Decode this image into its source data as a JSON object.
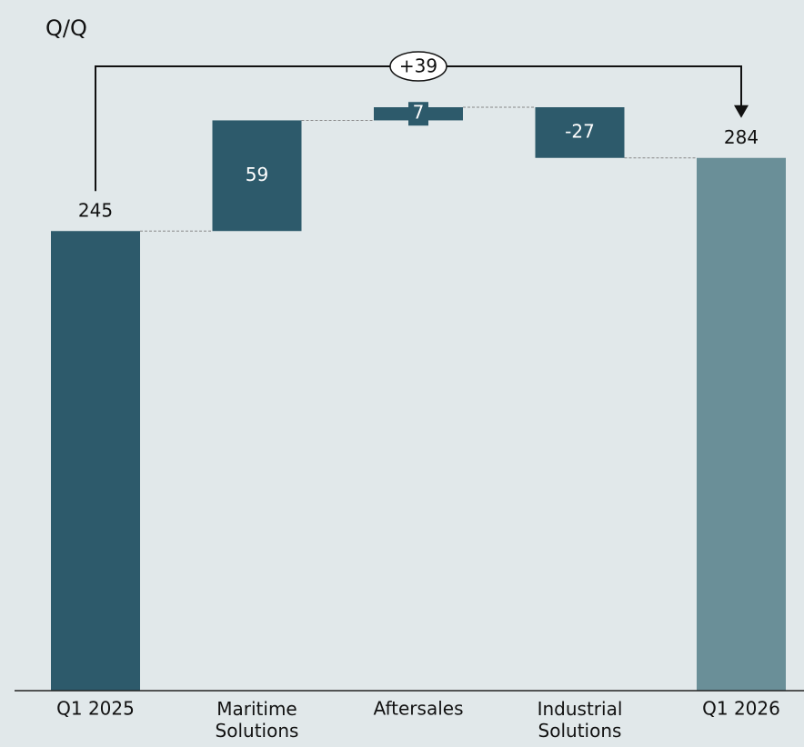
{
  "chart_data": {
    "type": "waterfall",
    "title": "Q/Q",
    "categories": [
      "Q1 2025",
      "Maritime Solutions",
      "Aftersales",
      "Industrial Solutions",
      "Q1 2026"
    ],
    "values": [
      245,
      59,
      7,
      -27,
      284
    ],
    "measures": [
      "total",
      "relative",
      "relative",
      "relative",
      "total"
    ],
    "colors": [
      "#2d5a6b",
      "#2d5a6b",
      "#2d5a6b",
      "#2d5a6b",
      "#6a8f98"
    ],
    "annotation": "+39"
  }
}
